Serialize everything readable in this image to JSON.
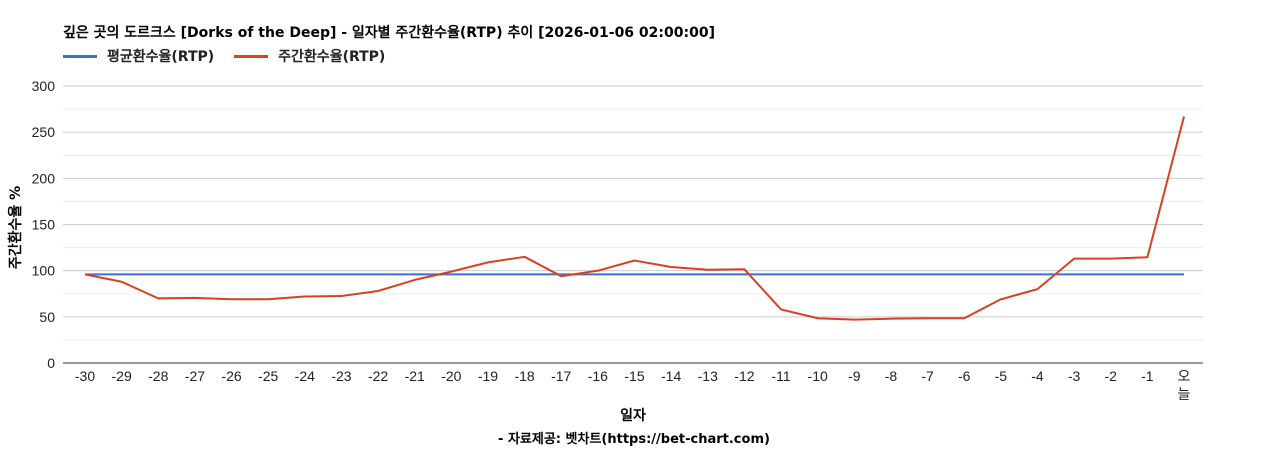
{
  "chart_data": {
    "type": "line",
    "title": "깊은 곳의 도르크스 [Dorks of the Deep] - 일자별 주간환수율(RTP) 추이 [2026-01-06 02:00:00]",
    "xlabel": "일자",
    "ylabel": "주간환수율 %",
    "ylim": [
      0,
      300
    ],
    "yticks": [
      0,
      50,
      100,
      150,
      200,
      250,
      300
    ],
    "grid": true,
    "legend_position": "top-left",
    "categories": [
      "-30",
      "-29",
      "-28",
      "-27",
      "-26",
      "-25",
      "-24",
      "-23",
      "-22",
      "-21",
      "-20",
      "-19",
      "-18",
      "-17",
      "-16",
      "-15",
      "-14",
      "-13",
      "-12",
      "-11",
      "-10",
      "-9",
      "-8",
      "-7",
      "-6",
      "-5",
      "-4",
      "-3",
      "-2",
      "-1",
      "오늘"
    ],
    "series": [
      {
        "name": "평균환수율(RTP)",
        "color": "#3c6fd1",
        "values": [
          96,
          96,
          96,
          96,
          96,
          96,
          96,
          96,
          96,
          96,
          96,
          96,
          96,
          96,
          96,
          96,
          96,
          96,
          96,
          96,
          96,
          96,
          96,
          96,
          96,
          96,
          96,
          96,
          96,
          96,
          96
        ]
      },
      {
        "name": "주간환수율(RTP)",
        "color": "#d9401f",
        "values": [
          96,
          88,
          70,
          70.5,
          69,
          69,
          72,
          72.5,
          78,
          90,
          99,
          109,
          115,
          94,
          100,
          111,
          104,
          101,
          101.5,
          58,
          48.5,
          47,
          48,
          48.5,
          48.5,
          69,
          80,
          113,
          113,
          114.5,
          267
        ]
      }
    ]
  },
  "footer": {
    "source": "- 자료제공: 벳차트(https://bet-chart.com)"
  }
}
